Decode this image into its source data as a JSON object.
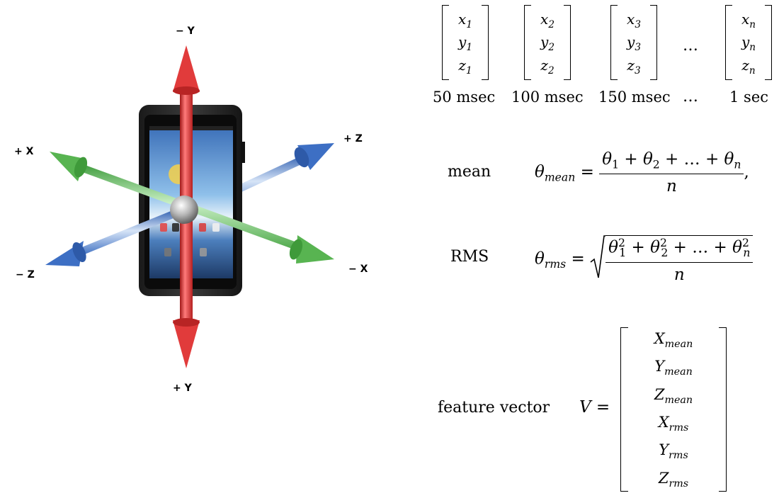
{
  "axes": {
    "neg_y": "− Y",
    "pos_y": "+ Y",
    "pos_x": "+ X",
    "neg_x": "− X",
    "pos_z": "+ Z",
    "neg_z": "− Z",
    "colors": {
      "y": "#e03b3b",
      "x": "#5fbf5a",
      "z": "#4a7fd0"
    }
  },
  "samples": {
    "vectors": [
      {
        "x": "x",
        "y": "y",
        "z": "z",
        "idx": "1",
        "time": "50 msec"
      },
      {
        "x": "x",
        "y": "y",
        "z": "z",
        "idx": "2",
        "time": "100 msec"
      },
      {
        "x": "x",
        "y": "y",
        "z": "z",
        "idx": "3",
        "time": "150 msec"
      },
      {
        "x": "x",
        "y": "y",
        "z": "z",
        "idx": "n",
        "time": "1 sec"
      }
    ],
    "ellipsis": "…"
  },
  "mean": {
    "label": "mean",
    "lhs_symbol": "θ",
    "lhs_sub": "mean",
    "numerator": "θ",
    "denominator": "n"
  },
  "rms": {
    "label": "RMS",
    "lhs_symbol": "θ",
    "lhs_sub": "rms",
    "denominator": "n"
  },
  "feature": {
    "label": "feature vector",
    "lhs": "V",
    "rows": [
      {
        "sym": "X",
        "sub": "mean"
      },
      {
        "sym": "Y",
        "sub": "mean"
      },
      {
        "sym": "Z",
        "sub": "mean"
      },
      {
        "sym": "X",
        "sub": "rms"
      },
      {
        "sym": "Y",
        "sub": "rms"
      },
      {
        "sym": "Z",
        "sub": "rms"
      }
    ]
  }
}
